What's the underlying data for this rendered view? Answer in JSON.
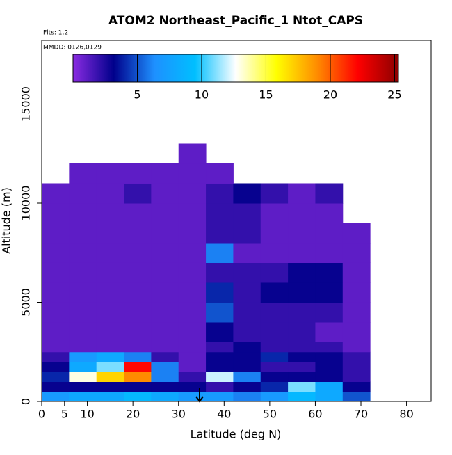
{
  "chart_data": {
    "type": "heatmap",
    "title": "ATOM2 Northeast_Pacific_1 Ntot_CAPS",
    "annotations": [
      "Flts: 1,2",
      "MMDD: 0126,0129"
    ],
    "x_label": "Latitude (deg N)",
    "y_label": "Altitude (m)",
    "xlim": [
      0,
      85.4
    ],
    "ylim": [
      0,
      18210
    ],
    "xticks": [
      0,
      5,
      10,
      20,
      30,
      40,
      50,
      60,
      70,
      80
    ],
    "yticks": [
      0,
      5000,
      10000,
      15000
    ],
    "zlim": [
      0,
      25.3
    ],
    "zticks": [
      5,
      10,
      15,
      20,
      25
    ],
    "colormap": [
      "#8a2be2",
      "#00008b",
      "#1e90ff",
      "#00bfff",
      "#ffffff",
      "#ffff00",
      "#ff8c00",
      "#ff0000",
      "#8b0000"
    ],
    "x_edges": [
      0,
      6,
      12,
      18,
      24,
      30,
      36,
      42,
      48,
      54,
      60,
      66,
      72
    ],
    "y_edges": [
      0,
      500,
      1000,
      1500,
      2000,
      2500,
      3000,
      4000,
      5000,
      6000,
      7000,
      8000,
      9000,
      10000,
      11000,
      12000,
      13000
    ],
    "z": [
      [
        7,
        8,
        8,
        9,
        8,
        7,
        7,
        6,
        7,
        9,
        8,
        5
      ],
      [
        3,
        3,
        3,
        3,
        3,
        3,
        2,
        3,
        4,
        11,
        8,
        3
      ],
      [
        4,
        13,
        17,
        19,
        6,
        2,
        12,
        6,
        3,
        3,
        3,
        2
      ],
      [
        3,
        8,
        11,
        22,
        6,
        1,
        3,
        3,
        2,
        2,
        3,
        2
      ],
      [
        2,
        7,
        8,
        6,
        2,
        1,
        3,
        3,
        4,
        3,
        3,
        2
      ],
      [
        1,
        1,
        1,
        1,
        1,
        1,
        2,
        3,
        2,
        2,
        2,
        1
      ],
      [
        1,
        1,
        1,
        1,
        1,
        1,
        3,
        2,
        2,
        2,
        1,
        1
      ],
      [
        1,
        1,
        1,
        1,
        1,
        1,
        5,
        2,
        2,
        2,
        2,
        1
      ],
      [
        1,
        1,
        1,
        1,
        1,
        1,
        4,
        2,
        3,
        3,
        3,
        1
      ],
      [
        1,
        1,
        1,
        1,
        1,
        1,
        2,
        2,
        2,
        3,
        3,
        1
      ],
      [
        1,
        1,
        1,
        1,
        1,
        1,
        6,
        1,
        1,
        1,
        1,
        1
      ],
      [
        1,
        1,
        1,
        1,
        1,
        1,
        2,
        2,
        1,
        1,
        1,
        1
      ],
      [
        1,
        1,
        1,
        1,
        1,
        1,
        2,
        2,
        1,
        1,
        1,
        null
      ],
      [
        1,
        1,
        1,
        2,
        1,
        1,
        2,
        3,
        2,
        1,
        2,
        null
      ],
      [
        null,
        1,
        1,
        1,
        1,
        1,
        1,
        null,
        null,
        null,
        null,
        null
      ],
      [
        null,
        null,
        null,
        null,
        null,
        1,
        null,
        null,
        null,
        null,
        null,
        null
      ]
    ]
  }
}
